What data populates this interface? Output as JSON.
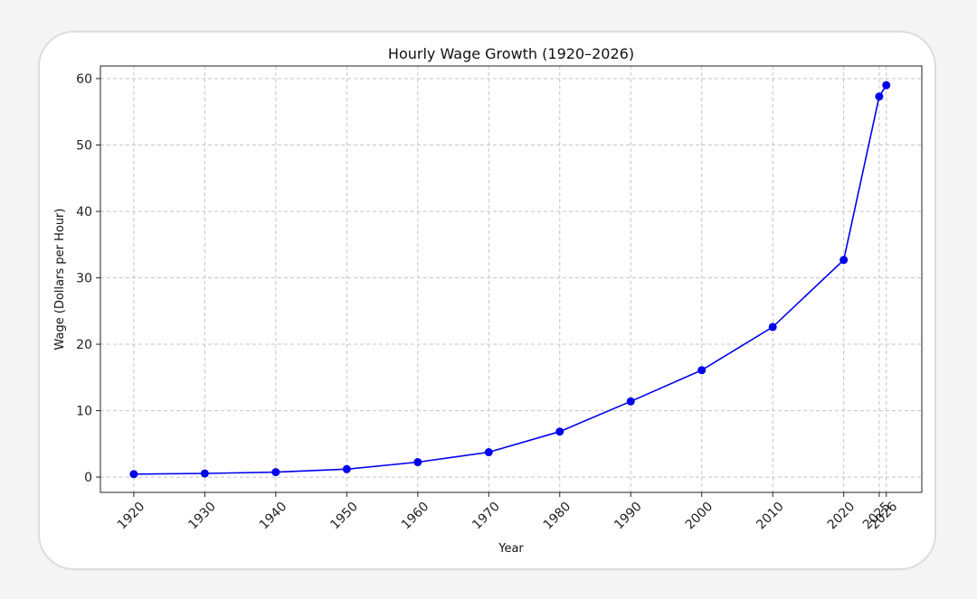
{
  "chart_data": {
    "type": "line",
    "title": "Hourly Wage Growth (1920–2026)",
    "xlabel": "Year",
    "ylabel": "Wage (Dollars per Hour)",
    "x": [
      1920,
      1930,
      1940,
      1950,
      1960,
      1970,
      1980,
      1990,
      2000,
      2010,
      2020,
      2025,
      2026
    ],
    "series": [
      {
        "values": [
          0.45,
          0.55,
          0.75,
          1.2,
          2.25,
          3.75,
          6.85,
          11.4,
          16.1,
          22.6,
          32.7,
          57.3,
          59.0
        ],
        "color": "#0000ee"
      }
    ],
    "xticks": [
      1920,
      1930,
      1940,
      1950,
      1960,
      1970,
      1980,
      1990,
      2000,
      2010,
      2020,
      2025,
      2026
    ],
    "yticks": [
      0,
      10,
      20,
      30,
      40,
      50,
      60
    ],
    "xlim": [
      1915.3,
      2031.0
    ],
    "ylim": [
      -2.3,
      61.9
    ],
    "grid": true,
    "grid_style": "dashed",
    "marker": "circle"
  }
}
